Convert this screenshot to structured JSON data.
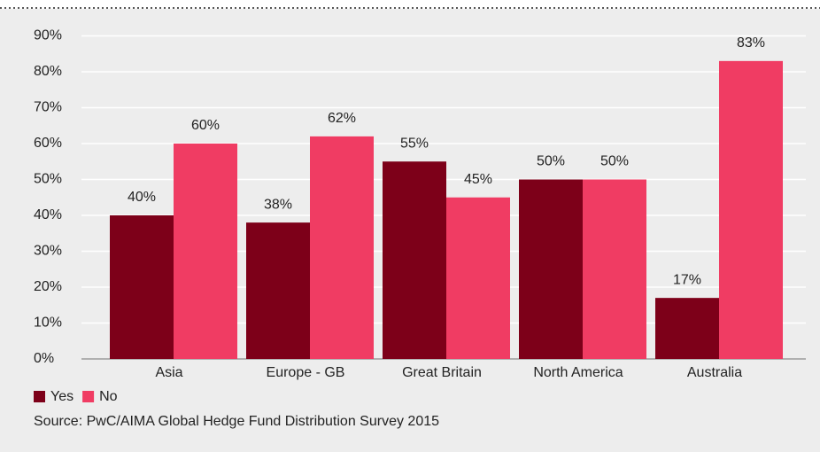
{
  "chart_data": {
    "type": "bar",
    "categories": [
      "Asia",
      "Europe - GB",
      "Great Britain",
      "North America",
      "Australia"
    ],
    "series": [
      {
        "name": "Yes",
        "color": "#7d0019",
        "values": [
          40,
          38,
          55,
          50,
          17
        ],
        "value_labels": [
          "40%",
          "38%",
          "55%",
          "50%",
          "17%"
        ]
      },
      {
        "name": "No",
        "color": "#f03c63",
        "values": [
          60,
          62,
          45,
          50,
          83
        ],
        "value_labels": [
          "60%",
          "62%",
          "45%",
          "50%",
          "83%"
        ]
      }
    ],
    "ylim": [
      0,
      90
    ],
    "yticks": [
      {
        "value": 0,
        "label": "0%"
      },
      {
        "value": 10,
        "label": "10%"
      },
      {
        "value": 20,
        "label": "20%"
      },
      {
        "value": 30,
        "label": "30%"
      },
      {
        "value": 40,
        "label": "40%"
      },
      {
        "value": 50,
        "label": "50%"
      },
      {
        "value": 60,
        "label": "60%"
      },
      {
        "value": 70,
        "label": "70%"
      },
      {
        "value": 80,
        "label": "80%"
      },
      {
        "value": 90,
        "label": "90%"
      }
    ],
    "grid": true,
    "legend": "bottom-left",
    "source": "Source: PwC/AIMA Global Hedge Fund Distribution Survey 2015"
  }
}
